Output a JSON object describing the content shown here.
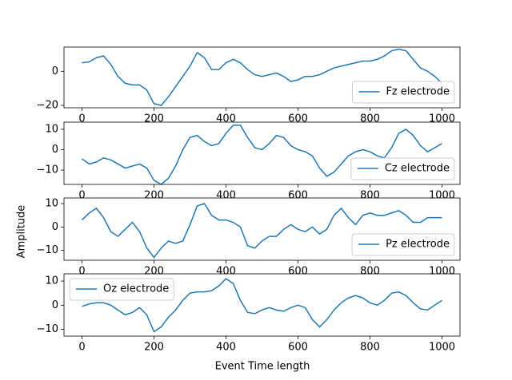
{
  "xlabel": "Event Time length",
  "ylabel": "Amplitude",
  "chart_data": [
    {
      "type": "line",
      "legend": "lower right",
      "x": [
        0,
        20,
        40,
        60,
        80,
        100,
        120,
        140,
        160,
        180,
        200,
        220,
        240,
        260,
        280,
        300,
        320,
        340,
        360,
        380,
        400,
        420,
        440,
        460,
        480,
        500,
        520,
        540,
        560,
        580,
        600,
        620,
        640,
        660,
        680,
        700,
        720,
        740,
        760,
        780,
        800,
        820,
        840,
        860,
        880,
        900,
        920,
        940,
        960,
        980,
        1000
      ],
      "series": [
        {
          "name": "Fz electrode",
          "color": "#1f77b4",
          "values": [
            5,
            5.5,
            8,
            9,
            4,
            -3,
            -7,
            -8,
            -8,
            -11,
            -19,
            -20,
            -15,
            -9,
            -3,
            3,
            11,
            8,
            1,
            1,
            5,
            7,
            5,
            1,
            -2,
            -3,
            -2,
            -1,
            -3,
            -6,
            -5,
            -3,
            -3,
            -2,
            0,
            2,
            3,
            4,
            5,
            6,
            6,
            7,
            9,
            12,
            13,
            12,
            7,
            2,
            0,
            -3,
            -7
          ]
        }
      ],
      "xlim": [
        -50,
        1050
      ],
      "ylim": [
        -21.4,
        14.2
      ],
      "xticks": [
        0,
        200,
        400,
        600,
        800,
        1000
      ],
      "yticks": [
        {
          "value": -20,
          "label": "−20"
        },
        0
      ]
    },
    {
      "type": "line",
      "legend": "lower right",
      "x": [
        0,
        20,
        40,
        60,
        80,
        100,
        120,
        140,
        160,
        180,
        200,
        220,
        240,
        260,
        280,
        300,
        320,
        340,
        360,
        380,
        400,
        420,
        440,
        460,
        480,
        500,
        520,
        540,
        560,
        580,
        600,
        620,
        640,
        660,
        680,
        700,
        720,
        740,
        760,
        780,
        800,
        820,
        840,
        860,
        880,
        900,
        920,
        940,
        960,
        980,
        1000
      ],
      "series": [
        {
          "name": "Cz electrode",
          "color": "#1f77b4",
          "values": [
            -4.5,
            -7,
            -6,
            -4,
            -5,
            -7,
            -9,
            -8,
            -7,
            -9,
            -15,
            -17,
            -14,
            -8,
            0,
            6,
            7,
            4,
            2,
            3,
            8,
            12,
            12,
            6,
            1,
            0,
            3,
            7,
            6,
            2,
            0,
            -1,
            -3,
            -9,
            -13,
            -11,
            -7,
            -3,
            -1,
            0,
            -1,
            -3,
            -4,
            1,
            8,
            10,
            7,
            2,
            -1,
            1,
            3
          ]
        }
      ],
      "xlim": [
        -50,
        1050
      ],
      "ylim": [
        -17,
        13.5
      ],
      "xticks": [
        0,
        200,
        400,
        600,
        800,
        1000
      ],
      "yticks": [
        {
          "value": -10,
          "label": "−10"
        },
        0,
        10
      ]
    },
    {
      "type": "line",
      "legend": "lower right",
      "x": [
        0,
        20,
        40,
        60,
        80,
        100,
        120,
        140,
        160,
        180,
        200,
        220,
        240,
        260,
        280,
        300,
        320,
        340,
        360,
        380,
        400,
        420,
        440,
        460,
        480,
        500,
        520,
        540,
        560,
        580,
        600,
        620,
        640,
        660,
        680,
        700,
        720,
        740,
        760,
        780,
        800,
        820,
        840,
        860,
        880,
        900,
        920,
        940,
        960,
        980,
        1000
      ],
      "series": [
        {
          "name": "Pz electrode",
          "color": "#1f77b4",
          "values": [
            3,
            6,
            8,
            4,
            -2,
            -4,
            -1,
            2,
            -2,
            -9,
            -13,
            -9,
            -6,
            -7,
            -6,
            1,
            9,
            10,
            5,
            3,
            3,
            2,
            0,
            -8,
            -9,
            -6,
            -4,
            -4,
            -1,
            1,
            -1,
            -2,
            0,
            -3,
            -1,
            5,
            8,
            4,
            1,
            5,
            6,
            5,
            5,
            6,
            7,
            5,
            2,
            2,
            4,
            4,
            4
          ]
        }
      ],
      "xlim": [
        -50,
        1050
      ],
      "ylim": [
        -14.2,
        12.4
      ],
      "xticks": [
        0,
        200,
        400,
        600,
        800,
        1000
      ],
      "yticks": [
        {
          "value": -10,
          "label": "−10"
        },
        0,
        10
      ]
    },
    {
      "type": "line",
      "legend": "upper left",
      "x": [
        0,
        20,
        40,
        60,
        80,
        100,
        120,
        140,
        160,
        180,
        200,
        220,
        240,
        260,
        280,
        300,
        320,
        340,
        360,
        380,
        400,
        420,
        440,
        460,
        480,
        500,
        520,
        540,
        560,
        580,
        600,
        620,
        640,
        660,
        680,
        700,
        720,
        740,
        760,
        780,
        800,
        820,
        840,
        860,
        880,
        900,
        920,
        940,
        960,
        980,
        1000
      ],
      "series": [
        {
          "name": "Oz electrode",
          "color": "#1f77b4",
          "values": [
            -0.5,
            0.5,
            1,
            1,
            0,
            -2,
            -4,
            -3,
            -1,
            -4,
            -11,
            -9,
            -5,
            -2,
            2,
            5,
            5.5,
            5.5,
            6,
            8,
            11,
            9,
            2,
            -3,
            -3.5,
            -2,
            -1,
            -2,
            -2.5,
            -1,
            0,
            -1,
            -6,
            -9,
            -6,
            -2,
            1,
            3,
            4,
            3,
            1,
            0,
            2,
            5,
            5.5,
            4,
            1,
            -1.5,
            -2,
            0,
            2
          ]
        }
      ],
      "xlim": [
        -50,
        1050
      ],
      "ylim": [
        -12.8,
        13
      ],
      "xticks": [
        0,
        200,
        400,
        600,
        800,
        1000
      ],
      "yticks": [
        {
          "value": -10,
          "label": "−10"
        },
        0,
        10
      ]
    }
  ]
}
